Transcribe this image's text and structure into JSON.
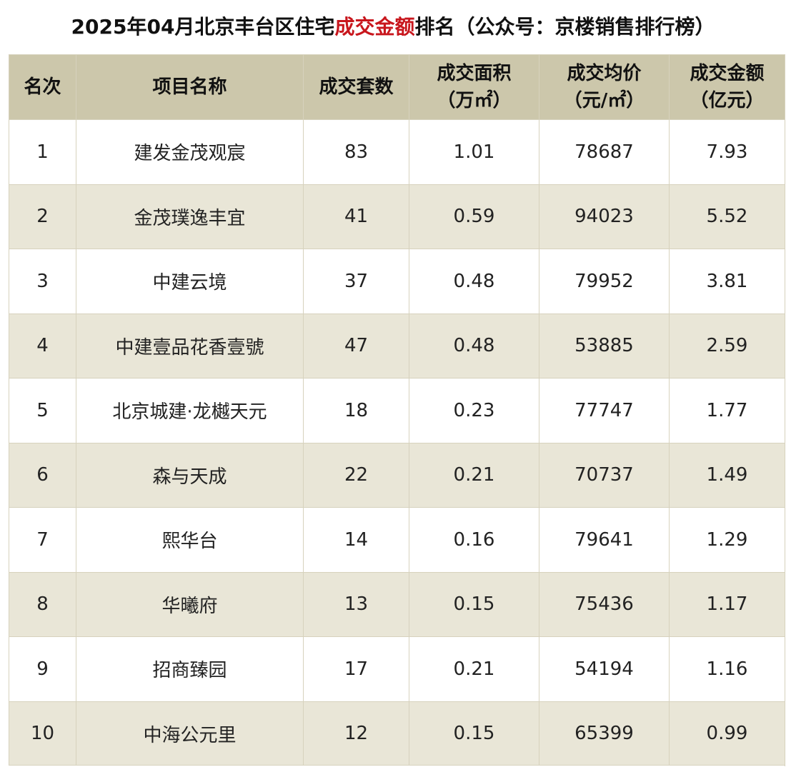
{
  "title": {
    "prefix": "2025年04月北京丰台区住宅",
    "highlight": "成交金额",
    "suffix": "排名（公众号：京楼销售排行榜）",
    "highlight_color": "#c8161d"
  },
  "table": {
    "header_bg": "#ccc7ab",
    "stripe_bg": "#e9e6d7",
    "headers": {
      "rank": "名次",
      "name": "项目名称",
      "units": "成交套数",
      "area_l1": "成交面积",
      "area_l2": "（万㎡）",
      "price_l1": "成交均价",
      "price_l2": "（元/㎡）",
      "amount_l1": "成交金额",
      "amount_l2": "（亿元）"
    },
    "rows": [
      {
        "rank": "1",
        "name": "建发金茂观宸",
        "units": "83",
        "area": "1.01",
        "price": "78687",
        "amount": "7.93"
      },
      {
        "rank": "2",
        "name": "金茂璞逸丰宜",
        "units": "41",
        "area": "0.59",
        "price": "94023",
        "amount": "5.52"
      },
      {
        "rank": "3",
        "name": "中建云境",
        "units": "37",
        "area": "0.48",
        "price": "79952",
        "amount": "3.81"
      },
      {
        "rank": "4",
        "name": "中建壹品花香壹號",
        "units": "47",
        "area": "0.48",
        "price": "53885",
        "amount": "2.59"
      },
      {
        "rank": "5",
        "name": "北京城建·龙樾天元",
        "units": "18",
        "area": "0.23",
        "price": "77747",
        "amount": "1.77"
      },
      {
        "rank": "6",
        "name": "森与天成",
        "units": "22",
        "area": "0.21",
        "price": "70737",
        "amount": "1.49"
      },
      {
        "rank": "7",
        "name": "熙华台",
        "units": "14",
        "area": "0.16",
        "price": "79641",
        "amount": "1.29"
      },
      {
        "rank": "8",
        "name": "华曦府",
        "units": "13",
        "area": "0.15",
        "price": "75436",
        "amount": "1.17"
      },
      {
        "rank": "9",
        "name": "招商臻园",
        "units": "17",
        "area": "0.21",
        "price": "54194",
        "amount": "1.16"
      },
      {
        "rank": "10",
        "name": "中海公元里",
        "units": "12",
        "area": "0.15",
        "price": "65399",
        "amount": "0.99"
      }
    ]
  }
}
